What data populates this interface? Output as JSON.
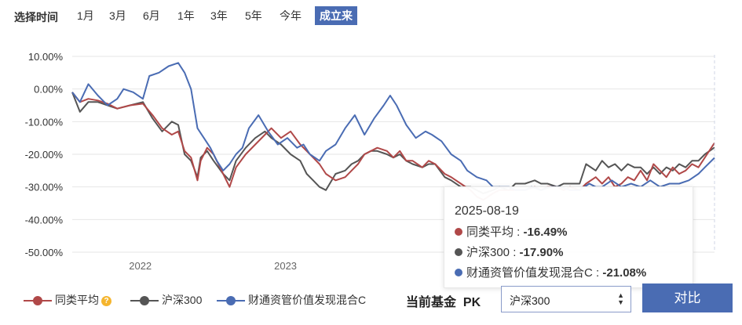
{
  "range_selector": {
    "label": "选择时间",
    "buttons": [
      "1月",
      "3月",
      "6月",
      "1年",
      "3年",
      "5年",
      "今年",
      "成立来"
    ],
    "active": "成立来"
  },
  "chart_data": {
    "type": "line",
    "x_tick_labels": [
      "2022",
      "2023"
    ],
    "y_tick_labels": [
      "10.00%",
      "0.00%",
      "-10.00%",
      "-20.00%",
      "-30.00%",
      "-40.00%",
      "-50.00%"
    ],
    "ylim": [
      -50,
      10
    ],
    "y_unit": "%",
    "grid": true,
    "x_note": "x = approximate fraction of the time axis (0 = fund inception, 1 = 2025-08-19)",
    "series": [
      {
        "name": "同类平均",
        "color": "#b04848",
        "points": [
          [
            0,
            -1
          ],
          [
            0.012,
            -4
          ],
          [
            0.025,
            -3
          ],
          [
            0.04,
            -3.5
          ],
          [
            0.055,
            -4.5
          ],
          [
            0.07,
            -6
          ],
          [
            0.09,
            -5
          ],
          [
            0.11,
            -4.5
          ],
          [
            0.125,
            -8
          ],
          [
            0.14,
            -12
          ],
          [
            0.155,
            -14
          ],
          [
            0.165,
            -13
          ],
          [
            0.175,
            -19
          ],
          [
            0.185,
            -21
          ],
          [
            0.195,
            -28
          ],
          [
            0.2,
            -22
          ],
          [
            0.21,
            -18
          ],
          [
            0.22,
            -20
          ],
          [
            0.235,
            -26
          ],
          [
            0.245,
            -30
          ],
          [
            0.255,
            -24
          ],
          [
            0.27,
            -20
          ],
          [
            0.285,
            -17
          ],
          [
            0.3,
            -14
          ],
          [
            0.31,
            -12
          ],
          [
            0.325,
            -15
          ],
          [
            0.34,
            -13
          ],
          [
            0.355,
            -17
          ],
          [
            0.365,
            -19
          ],
          [
            0.375,
            -21
          ],
          [
            0.385,
            -23
          ],
          [
            0.395,
            -26
          ],
          [
            0.41,
            -28
          ],
          [
            0.425,
            -27
          ],
          [
            0.435,
            -25
          ],
          [
            0.445,
            -23
          ],
          [
            0.455,
            -20
          ],
          [
            0.465,
            -19
          ],
          [
            0.475,
            -18
          ],
          [
            0.49,
            -19
          ],
          [
            0.5,
            -21
          ],
          [
            0.51,
            -19
          ],
          [
            0.52,
            -22
          ],
          [
            0.53,
            -22
          ],
          [
            0.545,
            -24
          ],
          [
            0.555,
            -22
          ],
          [
            0.565,
            -23
          ],
          [
            0.58,
            -26
          ],
          [
            0.59,
            -27
          ],
          [
            0.605,
            -29
          ],
          [
            0.62,
            -31
          ],
          [
            0.63,
            -33
          ],
          [
            0.64,
            -34
          ],
          [
            0.655,
            -32
          ],
          [
            0.665,
            -31
          ],
          [
            0.68,
            -31
          ],
          [
            0.69,
            -31
          ],
          [
            0.705,
            -31
          ],
          [
            0.72,
            -30
          ],
          [
            0.73,
            -31
          ],
          [
            0.74,
            -30
          ],
          [
            0.755,
            -30
          ],
          [
            0.765,
            -31
          ],
          [
            0.775,
            -30
          ],
          [
            0.79,
            -31
          ],
          [
            0.8,
            -29
          ],
          [
            0.815,
            -27
          ],
          [
            0.825,
            -29
          ],
          [
            0.835,
            -27
          ],
          [
            0.845,
            -30
          ],
          [
            0.855,
            -29
          ],
          [
            0.865,
            -27
          ],
          [
            0.875,
            -28
          ],
          [
            0.885,
            -25
          ],
          [
            0.895,
            -28
          ],
          [
            0.905,
            -23
          ],
          [
            0.915,
            -25
          ],
          [
            0.925,
            -27
          ],
          [
            0.935,
            -24
          ],
          [
            0.945,
            -26
          ],
          [
            0.955,
            -25
          ],
          [
            0.965,
            -23
          ],
          [
            0.975,
            -24
          ],
          [
            0.985,
            -21
          ],
          [
            1,
            -16.49
          ]
        ]
      },
      {
        "name": "沪深300",
        "color": "#555555",
        "points": [
          [
            0,
            -1
          ],
          [
            0.012,
            -7
          ],
          [
            0.025,
            -4
          ],
          [
            0.04,
            -4
          ],
          [
            0.055,
            -5
          ],
          [
            0.07,
            -6
          ],
          [
            0.09,
            -5
          ],
          [
            0.11,
            -4
          ],
          [
            0.125,
            -9
          ],
          [
            0.14,
            -13
          ],
          [
            0.155,
            -10
          ],
          [
            0.165,
            -11
          ],
          [
            0.175,
            -20
          ],
          [
            0.185,
            -22
          ],
          [
            0.195,
            -27
          ],
          [
            0.2,
            -21
          ],
          [
            0.21,
            -19
          ],
          [
            0.22,
            -22
          ],
          [
            0.235,
            -26
          ],
          [
            0.245,
            -28
          ],
          [
            0.255,
            -22
          ],
          [
            0.27,
            -18
          ],
          [
            0.285,
            -15
          ],
          [
            0.3,
            -13
          ],
          [
            0.31,
            -15
          ],
          [
            0.325,
            -17
          ],
          [
            0.34,
            -20
          ],
          [
            0.355,
            -22
          ],
          [
            0.365,
            -26
          ],
          [
            0.375,
            -28
          ],
          [
            0.385,
            -30
          ],
          [
            0.395,
            -31
          ],
          [
            0.41,
            -26
          ],
          [
            0.425,
            -25
          ],
          [
            0.435,
            -23
          ],
          [
            0.445,
            -22
          ],
          [
            0.455,
            -20
          ],
          [
            0.465,
            -19
          ],
          [
            0.475,
            -19
          ],
          [
            0.49,
            -20
          ],
          [
            0.5,
            -21
          ],
          [
            0.51,
            -20
          ],
          [
            0.52,
            -22
          ],
          [
            0.53,
            -23
          ],
          [
            0.545,
            -24
          ],
          [
            0.555,
            -23
          ],
          [
            0.565,
            -23
          ],
          [
            0.58,
            -27
          ],
          [
            0.59,
            -28
          ],
          [
            0.605,
            -30
          ],
          [
            0.62,
            -30
          ],
          [
            0.63,
            -31
          ],
          [
            0.64,
            -32
          ],
          [
            0.655,
            -31
          ],
          [
            0.665,
            -30
          ],
          [
            0.68,
            -31
          ],
          [
            0.69,
            -29
          ],
          [
            0.705,
            -29
          ],
          [
            0.72,
            -28
          ],
          [
            0.73,
            -29
          ],
          [
            0.74,
            -29
          ],
          [
            0.755,
            -30
          ],
          [
            0.765,
            -29
          ],
          [
            0.775,
            -29
          ],
          [
            0.79,
            -29
          ],
          [
            0.8,
            -23
          ],
          [
            0.815,
            -25
          ],
          [
            0.825,
            -22
          ],
          [
            0.835,
            -24
          ],
          [
            0.845,
            -23
          ],
          [
            0.855,
            -25
          ],
          [
            0.865,
            -23
          ],
          [
            0.875,
            -24
          ],
          [
            0.885,
            -24
          ],
          [
            0.895,
            -26
          ],
          [
            0.905,
            -24
          ],
          [
            0.915,
            -26
          ],
          [
            0.925,
            -24
          ],
          [
            0.935,
            -25
          ],
          [
            0.945,
            -23
          ],
          [
            0.955,
            -24
          ],
          [
            0.965,
            -22
          ],
          [
            0.975,
            -22
          ],
          [
            0.985,
            -20
          ],
          [
            1,
            -17.9
          ]
        ]
      },
      {
        "name": "财通资管价值发现混合C",
        "color": "#4a6cb3",
        "points": [
          [
            0,
            -1
          ],
          [
            0.012,
            -4
          ],
          [
            0.025,
            1.5
          ],
          [
            0.04,
            -2
          ],
          [
            0.055,
            -5
          ],
          [
            0.07,
            -3
          ],
          [
            0.08,
            0
          ],
          [
            0.095,
            -1
          ],
          [
            0.11,
            -3
          ],
          [
            0.12,
            4
          ],
          [
            0.135,
            5
          ],
          [
            0.15,
            7
          ],
          [
            0.165,
            8
          ],
          [
            0.175,
            5
          ],
          [
            0.185,
            0
          ],
          [
            0.195,
            -12
          ],
          [
            0.205,
            -15
          ],
          [
            0.215,
            -18
          ],
          [
            0.225,
            -22
          ],
          [
            0.235,
            -25
          ],
          [
            0.245,
            -23
          ],
          [
            0.255,
            -20
          ],
          [
            0.265,
            -18
          ],
          [
            0.275,
            -12
          ],
          [
            0.29,
            -8
          ],
          [
            0.305,
            -13
          ],
          [
            0.32,
            -17
          ],
          [
            0.335,
            -15
          ],
          [
            0.35,
            -18
          ],
          [
            0.36,
            -17
          ],
          [
            0.37,
            -20
          ],
          [
            0.385,
            -22
          ],
          [
            0.395,
            -19
          ],
          [
            0.41,
            -17
          ],
          [
            0.425,
            -12
          ],
          [
            0.44,
            -8
          ],
          [
            0.455,
            -14
          ],
          [
            0.47,
            -9
          ],
          [
            0.485,
            -5
          ],
          [
            0.495,
            -2
          ],
          [
            0.505,
            -5
          ],
          [
            0.52,
            -11
          ],
          [
            0.535,
            -15
          ],
          [
            0.55,
            -13
          ],
          [
            0.56,
            -14
          ],
          [
            0.575,
            -16
          ],
          [
            0.59,
            -20
          ],
          [
            0.605,
            -22
          ],
          [
            0.615,
            -25
          ],
          [
            0.63,
            -27
          ],
          [
            0.645,
            -28
          ],
          [
            0.655,
            -30
          ],
          [
            0.665,
            -30
          ],
          [
            0.68,
            -30
          ],
          [
            0.69,
            -31
          ],
          [
            0.705,
            -31
          ],
          [
            0.715,
            -30
          ],
          [
            0.73,
            -31
          ],
          [
            0.745,
            -30
          ],
          [
            0.76,
            -30
          ],
          [
            0.775,
            -31
          ],
          [
            0.79,
            -31
          ],
          [
            0.805,
            -29
          ],
          [
            0.815,
            -30
          ],
          [
            0.825,
            -30
          ],
          [
            0.84,
            -28
          ],
          [
            0.855,
            -30
          ],
          [
            0.87,
            -29
          ],
          [
            0.885,
            -30
          ],
          [
            0.9,
            -28
          ],
          [
            0.915,
            -30
          ],
          [
            0.93,
            -29
          ],
          [
            0.945,
            -29
          ],
          [
            0.96,
            -28
          ],
          [
            0.975,
            -26
          ],
          [
            0.985,
            -24
          ],
          [
            1,
            -21.08
          ]
        ]
      }
    ],
    "tooltip": {
      "date": "2025-08-19",
      "rows": [
        {
          "name": "同类平均",
          "value": "-16.49%"
        },
        {
          "name": "沪深300",
          "value": "-17.90%"
        },
        {
          "name": "财通资管价值发现混合C",
          "value": "-21.08%"
        }
      ]
    }
  },
  "legend": {
    "items": [
      {
        "label": "同类平均",
        "color": "#b04848",
        "has_help_icon": true
      },
      {
        "label": "沪深300",
        "color": "#555555",
        "has_help_icon": false
      },
      {
        "label": "财通资管价值发现混合C",
        "color": "#4a6cb3",
        "has_help_icon": false
      }
    ],
    "help_icon_glyph": "?"
  },
  "pk": {
    "label": "当前基金  PK",
    "select_value": "沪深300",
    "compare_label": "对比"
  }
}
